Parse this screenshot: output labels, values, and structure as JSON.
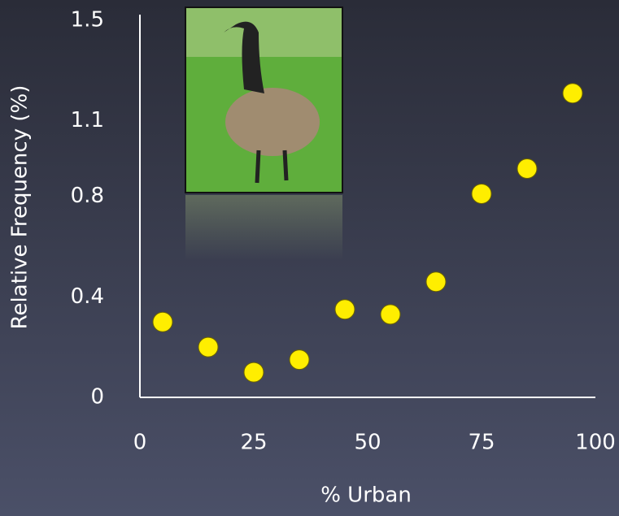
{
  "chart_data": {
    "type": "scatter",
    "x_label": "% Urban",
    "y_label": "Relative Frequency (%)",
    "x": [
      5,
      15,
      25,
      35,
      45,
      55,
      65,
      75,
      85,
      95
    ],
    "values": [
      0.3,
      0.2,
      0.1,
      0.15,
      0.35,
      0.33,
      0.46,
      0.81,
      0.91,
      1.21
    ],
    "color": "#ffee00",
    "xlim": [
      0,
      100
    ],
    "xticks": [
      0,
      25,
      50,
      75,
      100
    ],
    "ylim": [
      0,
      1.5
    ],
    "yticks": [
      0,
      0.4,
      0.8,
      1.1,
      1.5
    ],
    "grid": false
  }
}
